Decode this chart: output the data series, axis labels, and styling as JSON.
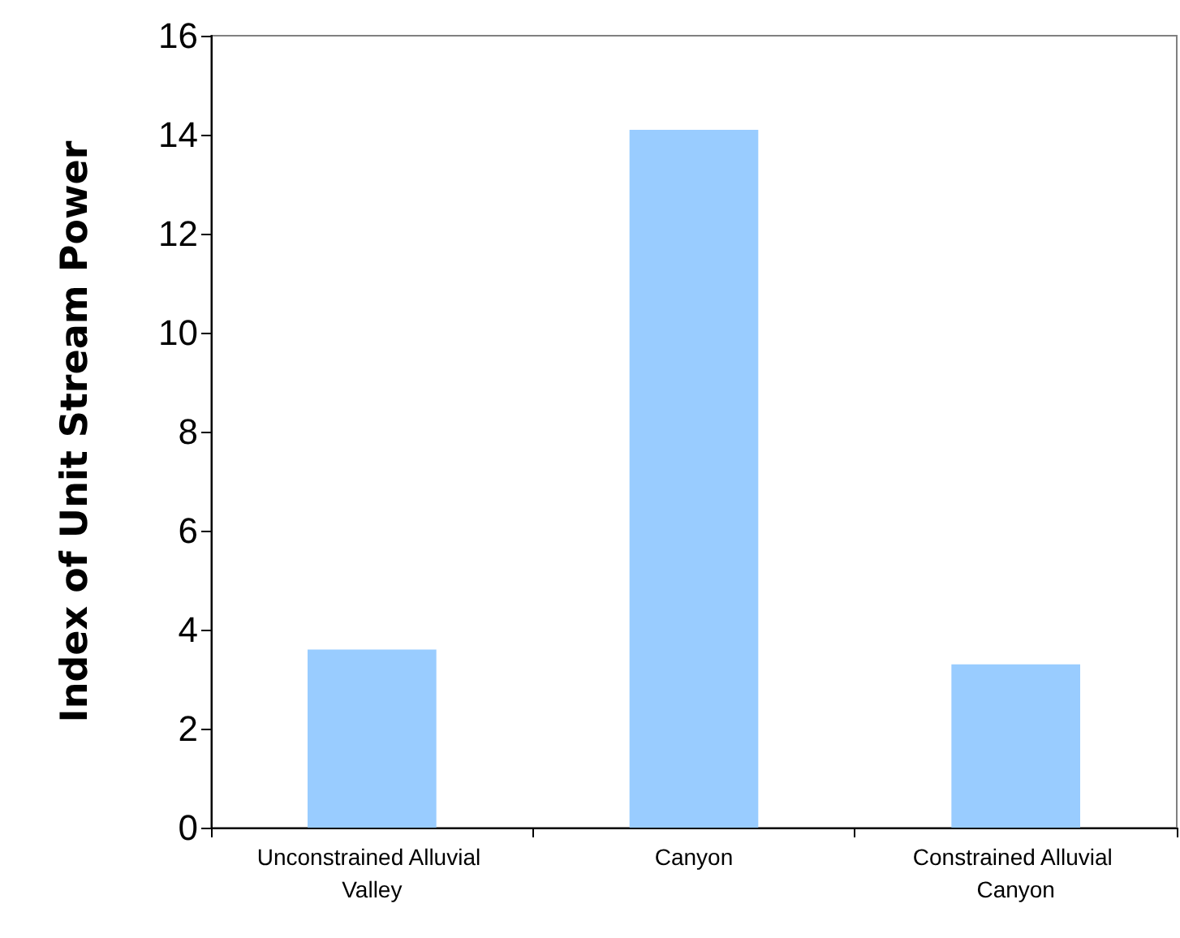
{
  "chart_data": {
    "type": "bar",
    "ylabel": "Index of Unit Stream Power",
    "categories": [
      "Unconstrained Alluvial Valley",
      "Canyon",
      "Constrained Alluvial Canyon"
    ],
    "values": [
      3.6,
      14.1,
      3.3
    ],
    "color": "#99ccff",
    "ylim": [
      0,
      16
    ],
    "yticks": [
      0,
      2,
      4,
      6,
      8,
      10,
      12,
      14,
      16
    ],
    "grid": false
  }
}
